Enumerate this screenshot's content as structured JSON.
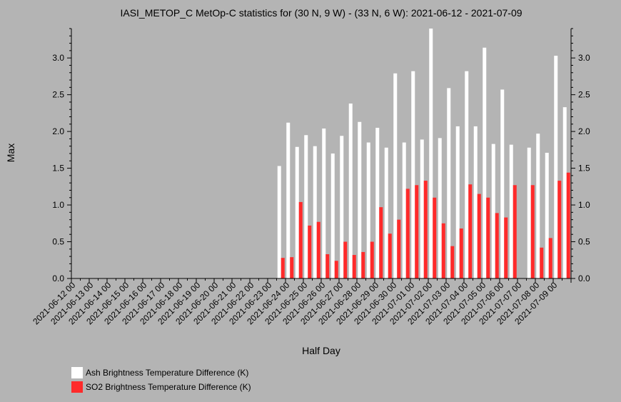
{
  "chart_data": {
    "type": "bar",
    "title": "IASI_METOP_C MetOp-C statistics for (30 N, 9 W) - (33 N, 6 W): 2021-06-12 - 2021-07-09",
    "xlabel": "Half Day",
    "ylabel": "Max",
    "ylim": [
      0,
      3.4
    ],
    "yticks": [
      "0.0",
      "0.5",
      "1.0",
      "1.5",
      "2.0",
      "2.5",
      "3.0"
    ],
    "xticks": [
      "2021-06-12 00",
      "2021-06-13 00",
      "2021-06-14 00",
      "2021-06-15 00",
      "2021-06-16 00",
      "2021-06-17 00",
      "2021-06-18 00",
      "2021-06-19 00",
      "2021-06-20 00",
      "2021-06-21 00",
      "2021-06-22 00",
      "2021-06-23 00",
      "2021-06-24 00",
      "2021-06-25 00",
      "2021-06-26 00",
      "2021-06-27 00",
      "2021-06-28 00",
      "2021-06-29 00",
      "2021-06-30 00",
      "2021-07-01 00",
      "2021-07-02 00",
      "2021-07-03 00",
      "2021-07-04 00",
      "2021-07-05 00",
      "2021-07-06 00",
      "2021-07-07 00",
      "2021-07-08 00",
      "2021-07-09 00"
    ],
    "legend_position": "bottom-left",
    "grid": false,
    "series": [
      {
        "name": "Ash Brightness Temperature Difference (K)",
        "color": "#ffffff",
        "values": [
          null,
          null,
          null,
          null,
          null,
          null,
          null,
          null,
          null,
          null,
          null,
          null,
          null,
          null,
          null,
          null,
          null,
          null,
          null,
          null,
          null,
          null,
          null,
          1.53,
          2.12,
          1.79,
          1.95,
          1.8,
          2.04,
          1.7,
          1.94,
          2.38,
          2.13,
          1.85,
          2.05,
          1.78,
          2.79,
          1.85,
          2.82,
          1.89,
          3.4,
          1.91,
          2.59,
          2.07,
          2.82,
          2.07,
          3.14,
          1.83,
          2.57,
          1.82,
          null,
          1.78,
          1.97,
          1.71,
          3.03,
          2.33
        ]
      },
      {
        "name": "SO2 Brightness Temperature Difference (K)",
        "color": "#ff2a2a",
        "values": [
          null,
          null,
          null,
          null,
          null,
          null,
          null,
          null,
          null,
          null,
          null,
          null,
          null,
          null,
          null,
          null,
          null,
          null,
          null,
          null,
          null,
          null,
          null,
          0.28,
          0.29,
          1.04,
          0.72,
          0.77,
          0.33,
          0.24,
          0.5,
          0.32,
          0.36,
          0.5,
          0.97,
          0.61,
          0.8,
          1.22,
          1.27,
          1.33,
          1.1,
          0.75,
          0.44,
          0.68,
          1.28,
          1.15,
          1.1,
          0.89,
          0.83,
          1.27,
          null,
          1.27,
          0.42,
          0.55,
          1.33,
          1.44
        ]
      }
    ]
  }
}
